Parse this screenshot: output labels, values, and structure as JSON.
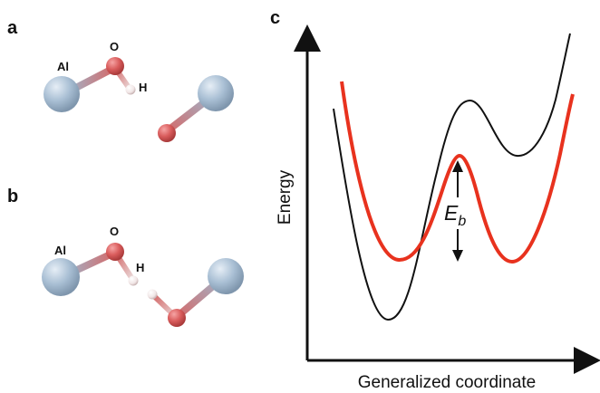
{
  "panels": {
    "a": {
      "label": "a",
      "atoms": {
        "al": "Al",
        "o": "O",
        "h": "H"
      }
    },
    "b": {
      "label": "b",
      "atoms": {
        "al": "Al",
        "o": "O",
        "h": "H"
      }
    },
    "c": {
      "label": "c",
      "ylabel": "Energy",
      "xlabel": "Generalized coordinate",
      "barrier_symbol": "E",
      "barrier_subscript": "b"
    }
  },
  "colors": {
    "aluminum": "#a9bfd4",
    "oxygen": "#d95c5c",
    "hydrogen": "#f1e6e6",
    "bond_al": "#9fb6cc",
    "red_curve": "#e8321e",
    "black_curve": "#111111"
  },
  "icons": [
    "up-down-arrow-icon"
  ]
}
